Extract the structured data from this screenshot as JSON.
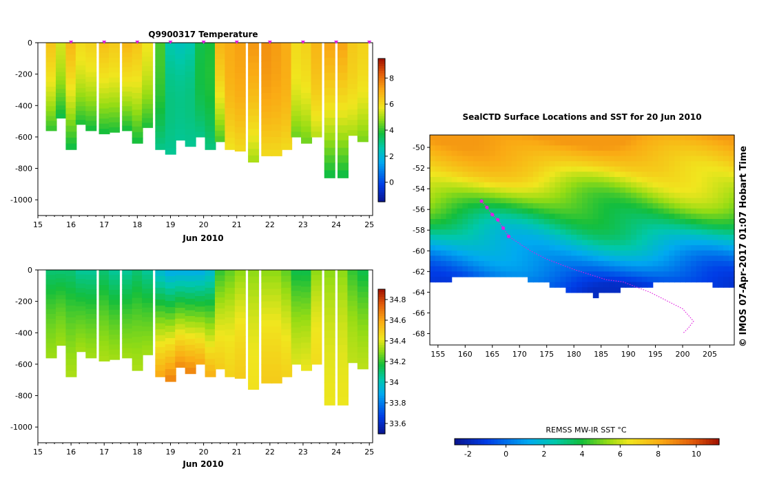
{
  "chart_data": [
    {
      "type": "heatmap",
      "title": "Q9900317  Temperature",
      "xlabel": "Jun 2010",
      "x_ticks": [
        "15",
        "16",
        "17",
        "18",
        "19",
        "20",
        "21",
        "22",
        "23",
        "24",
        "25"
      ],
      "xlim": [
        15,
        25.1
      ],
      "y_ticks": [
        "0",
        "-200",
        "-400",
        "-600",
        "-800",
        "-1000"
      ],
      "ylim": [
        -1100,
        0
      ],
      "colorbar_ticks": [
        "0",
        "2",
        "4",
        "6",
        "8"
      ],
      "colorbar_range": [
        -1.5,
        9.5
      ],
      "surface_markers": [
        16,
        17,
        18,
        19,
        20,
        21,
        22,
        23,
        24,
        25
      ],
      "profiles": [
        {
          "t": 15.4,
          "depth": 560,
          "surface": 6.5,
          "bottom": 4.0
        },
        {
          "t": 15.7,
          "depth": 480,
          "surface": 5.5,
          "bottom": 3.6
        },
        {
          "t": 16.0,
          "depth": 680,
          "surface": 6.8,
          "bottom": 3.6
        },
        {
          "t": 16.3,
          "depth": 520,
          "surface": 6.0,
          "bottom": 3.8
        },
        {
          "t": 16.6,
          "depth": 560,
          "surface": 6.2,
          "bottom": 3.7
        },
        {
          "t": 17.0,
          "depth": 580,
          "surface": 6.6,
          "bottom": 3.7
        },
        {
          "t": 17.3,
          "depth": 570,
          "surface": 6.4,
          "bottom": 3.8
        },
        {
          "t": 17.7,
          "depth": 560,
          "surface": 6.8,
          "bottom": 3.7
        },
        {
          "t": 18.0,
          "depth": 640,
          "surface": 6.5,
          "bottom": 3.7
        },
        {
          "t": 18.3,
          "depth": 540,
          "surface": 5.8,
          "bottom": 3.8
        },
        {
          "t": 18.7,
          "depth": 680,
          "surface": 4.2,
          "bottom": 3.0
        },
        {
          "t": 19.0,
          "depth": 710,
          "surface": 2.6,
          "bottom": 2.9
        },
        {
          "t": 19.3,
          "depth": 620,
          "surface": 2.4,
          "bottom": 2.9
        },
        {
          "t": 19.6,
          "depth": 660,
          "surface": 2.6,
          "bottom": 2.9
        },
        {
          "t": 19.9,
          "depth": 600,
          "surface": 3.6,
          "bottom": 3.0
        },
        {
          "t": 20.2,
          "depth": 680,
          "surface": 3.8,
          "bottom": 3.1
        },
        {
          "t": 20.5,
          "depth": 630,
          "surface": 6.8,
          "bottom": 4.2
        },
        {
          "t": 20.8,
          "depth": 680,
          "surface": 7.0,
          "bottom": 5.8
        },
        {
          "t": 21.1,
          "depth": 690,
          "surface": 7.2,
          "bottom": 6.0
        },
        {
          "t": 21.5,
          "depth": 760,
          "surface": 7.4,
          "bottom": 5.0
        },
        {
          "t": 21.9,
          "depth": 720,
          "surface": 7.5,
          "bottom": 6.0
        },
        {
          "t": 22.2,
          "depth": 720,
          "surface": 7.3,
          "bottom": 6.0
        },
        {
          "t": 22.5,
          "depth": 680,
          "surface": 7.0,
          "bottom": 6.0
        },
        {
          "t": 22.8,
          "depth": 600,
          "surface": 6.0,
          "bottom": 4.5
        },
        {
          "t": 23.1,
          "depth": 640,
          "surface": 6.2,
          "bottom": 4.5
        },
        {
          "t": 23.4,
          "depth": 600,
          "surface": 6.8,
          "bottom": 5.2
        },
        {
          "t": 23.8,
          "depth": 860,
          "surface": 7.2,
          "bottom": 3.6
        },
        {
          "t": 24.2,
          "depth": 860,
          "surface": 7.2,
          "bottom": 3.6
        },
        {
          "t": 24.5,
          "depth": 590,
          "surface": 6.4,
          "bottom": 5.0
        },
        {
          "t": 24.8,
          "depth": 630,
          "surface": 6.2,
          "bottom": 4.6
        }
      ]
    },
    {
      "type": "heatmap",
      "title": "",
      "xlabel": "Jun 2010",
      "x_ticks": [
        "15",
        "16",
        "17",
        "18",
        "19",
        "20",
        "21",
        "22",
        "23",
        "24",
        "25"
      ],
      "xlim": [
        15,
        25.1
      ],
      "y_ticks": [
        "0",
        "-200",
        "-400",
        "-600",
        "-800",
        "-1000"
      ],
      "ylim": [
        -1100,
        0
      ],
      "colorbar_ticks": [
        "33.6",
        "33.8",
        "34",
        "34.2",
        "34.4",
        "34.6",
        "34.8"
      ],
      "colorbar_range": [
        33.5,
        34.9
      ],
      "profiles": [
        {
          "t": 15.4,
          "depth": 560,
          "surface": 34.1,
          "bottom": 34.32
        },
        {
          "t": 15.7,
          "depth": 480,
          "surface": 34.1,
          "bottom": 34.32
        },
        {
          "t": 16.0,
          "depth": 680,
          "surface": 34.1,
          "bottom": 34.34
        },
        {
          "t": 16.3,
          "depth": 520,
          "surface": 34.05,
          "bottom": 34.33
        },
        {
          "t": 16.6,
          "depth": 560,
          "surface": 34.05,
          "bottom": 34.33
        },
        {
          "t": 17.0,
          "depth": 580,
          "surface": 34.1,
          "bottom": 34.34
        },
        {
          "t": 17.3,
          "depth": 570,
          "surface": 34.05,
          "bottom": 34.33
        },
        {
          "t": 17.7,
          "depth": 560,
          "surface": 34.05,
          "bottom": 34.33
        },
        {
          "t": 18.0,
          "depth": 640,
          "surface": 34.1,
          "bottom": 34.34
        },
        {
          "t": 18.3,
          "depth": 540,
          "surface": 34.05,
          "bottom": 34.33
        },
        {
          "t": 18.7,
          "depth": 680,
          "surface": 33.95,
          "bottom": 34.6
        },
        {
          "t": 19.0,
          "depth": 710,
          "surface": 33.9,
          "bottom": 34.68
        },
        {
          "t": 19.3,
          "depth": 620,
          "surface": 33.9,
          "bottom": 34.66
        },
        {
          "t": 19.6,
          "depth": 660,
          "surface": 33.9,
          "bottom": 34.68
        },
        {
          "t": 19.9,
          "depth": 600,
          "surface": 33.9,
          "bottom": 34.6
        },
        {
          "t": 20.2,
          "depth": 680,
          "surface": 33.95,
          "bottom": 34.58
        },
        {
          "t": 20.5,
          "depth": 630,
          "surface": 34.2,
          "bottom": 34.5
        },
        {
          "t": 20.8,
          "depth": 680,
          "surface": 34.25,
          "bottom": 34.48
        },
        {
          "t": 21.1,
          "depth": 690,
          "surface": 34.3,
          "bottom": 34.5
        },
        {
          "t": 21.5,
          "depth": 760,
          "surface": 34.3,
          "bottom": 34.44
        },
        {
          "t": 21.9,
          "depth": 720,
          "surface": 34.3,
          "bottom": 34.5
        },
        {
          "t": 22.2,
          "depth": 720,
          "surface": 34.3,
          "bottom": 34.5
        },
        {
          "t": 22.5,
          "depth": 680,
          "surface": 34.25,
          "bottom": 34.48
        },
        {
          "t": 22.8,
          "depth": 600,
          "surface": 34.15,
          "bottom": 34.4
        },
        {
          "t": 23.1,
          "depth": 640,
          "surface": 34.15,
          "bottom": 34.42
        },
        {
          "t": 23.4,
          "depth": 600,
          "surface": 34.3,
          "bottom": 34.45
        },
        {
          "t": 23.8,
          "depth": 860,
          "surface": 34.3,
          "bottom": 34.42
        },
        {
          "t": 24.2,
          "depth": 860,
          "surface": 34.3,
          "bottom": 34.42
        },
        {
          "t": 24.5,
          "depth": 590,
          "surface": 34.2,
          "bottom": 34.36
        },
        {
          "t": 24.8,
          "depth": 630,
          "surface": 34.15,
          "bottom": 34.36
        }
      ]
    },
    {
      "type": "heatmap",
      "title": "SealCTD Surface Locations and SST for 20 Jun 2010",
      "x_ticks": [
        "155",
        "160",
        "165",
        "170",
        "175",
        "180",
        "185",
        "190",
        "195",
        "200",
        "205"
      ],
      "xlim": [
        153.5,
        209.5
      ],
      "y_ticks": [
        "-50",
        "-52",
        "-54",
        "-56",
        "-58",
        "-60",
        "-62",
        "-64",
        "-66",
        "-68"
      ],
      "ylim": [
        -69.1,
        -48.8
      ],
      "colorbar_label": "REMSS MW-IR SST °C",
      "colorbar_ticks": [
        "-2",
        "0",
        "2",
        "4",
        "6",
        "8",
        "10"
      ],
      "colorbar_range": [
        -2.7,
        11.2
      ],
      "sst_vs_latitude": [
        {
          "lat": -49,
          "sst": 8.5
        },
        {
          "lat": -52,
          "sst": 7.2
        },
        {
          "lat": -54.5,
          "sst": 5.5
        },
        {
          "lat": -57,
          "sst": 3.6
        },
        {
          "lat": -59,
          "sst": 2.0
        },
        {
          "lat": -61,
          "sst": 0.6
        },
        {
          "lat": -63,
          "sst": -0.8
        },
        {
          "lat": -64.5,
          "sst": -1.7
        }
      ],
      "ice_edge": [
        {
          "lon": 153.5,
          "lat": -63.0
        },
        {
          "lon": 160,
          "lat": -62.6
        },
        {
          "lon": 167,
          "lat": -62.4
        },
        {
          "lon": 172,
          "lat": -62.8
        },
        {
          "lon": 176,
          "lat": -63.3
        },
        {
          "lon": 180,
          "lat": -64.2
        },
        {
          "lon": 184,
          "lat": -64.3
        },
        {
          "lon": 188,
          "lat": -63.8
        },
        {
          "lon": 193,
          "lat": -63.4
        },
        {
          "lon": 198,
          "lat": -63.0
        },
        {
          "lon": 203,
          "lat": -62.8
        },
        {
          "lon": 206,
          "lat": -63.3
        },
        {
          "lon": 208,
          "lat": -63.6
        },
        {
          "lon": 209.5,
          "lat": -63.6
        }
      ],
      "track_lon": [
        163,
        164,
        165,
        166,
        167,
        168,
        170,
        172,
        175,
        178,
        180,
        183,
        186,
        189,
        191,
        194,
        197,
        200,
        201,
        202,
        201,
        200
      ],
      "track_lat": [
        -55.2,
        -55.8,
        -56.5,
        -57.0,
        -57.8,
        -58.6,
        -59.3,
        -60.0,
        -60.8,
        -61.4,
        -61.8,
        -62.3,
        -62.8,
        -63.0,
        -63.4,
        -64.0,
        -64.8,
        -65.6,
        -66.2,
        -66.8,
        -67.5,
        -68.0
      ],
      "color_colder": "#0a1490",
      "color_warmer": "#a01000"
    }
  ],
  "stamp": "©  IMOS 07-Apr-2017 01:07 Hobart Time"
}
